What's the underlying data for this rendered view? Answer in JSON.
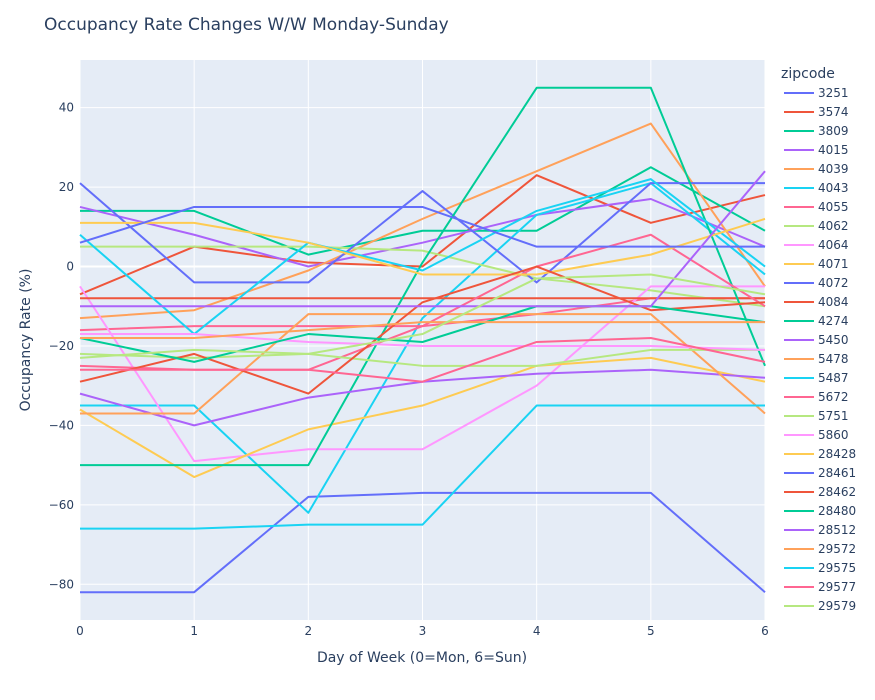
{
  "chart_data": {
    "type": "line",
    "title": "Occupancy Rate Changes W/W Monday-Sunday",
    "xlabel": "Day of Week (0=Mon, 6=Sun)",
    "ylabel": "Occupancy Rate (%)",
    "x": [
      0,
      1,
      2,
      3,
      4,
      5,
      6
    ],
    "x_ticks": [
      "0",
      "1",
      "2",
      "3",
      "4",
      "5",
      "6"
    ],
    "y_ticks": [
      "−80",
      "−60",
      "−40",
      "−20",
      "0",
      "20",
      "40"
    ],
    "y_tick_values": [
      -80,
      -60,
      -40,
      -20,
      0,
      20,
      40
    ],
    "xlim": [
      0,
      6
    ],
    "ylim": [
      -89,
      52
    ],
    "grid": true,
    "plot_bg": "#E5ECF6",
    "legend_title": "zipcode",
    "legend_position": "right",
    "series": [
      {
        "name": "3251",
        "color": "#636EFA",
        "values": [
          -82,
          -82,
          -58,
          -57,
          -57,
          -57,
          -82
        ]
      },
      {
        "name": "3574",
        "color": "#EF553B",
        "values": [
          -7,
          5,
          1,
          0,
          23,
          11,
          18
        ]
      },
      {
        "name": "3809",
        "color": "#00CC96",
        "values": [
          14,
          14,
          3,
          9,
          9,
          25,
          9
        ]
      },
      {
        "name": "4015",
        "color": "#AB63FA",
        "values": [
          15,
          8,
          0,
          6,
          13,
          17,
          5
        ]
      },
      {
        "name": "4039",
        "color": "#FFA15A",
        "values": [
          -13,
          -11,
          -1,
          12,
          24,
          36,
          -5
        ]
      },
      {
        "name": "4043",
        "color": "#19D3F3",
        "values": [
          -35,
          -35,
          -62,
          -13,
          13,
          21,
          -2
        ]
      },
      {
        "name": "4055",
        "color": "#FF6692",
        "values": [
          -16,
          -15,
          -15,
          -15,
          -12,
          -8,
          -8
        ]
      },
      {
        "name": "4062",
        "color": "#B6E880",
        "values": [
          5,
          5,
          5,
          4,
          -3,
          -6,
          -10
        ]
      },
      {
        "name": "4064",
        "color": "#FF97FF",
        "values": [
          -5,
          -49,
          -46,
          -46,
          -30,
          -5,
          -5
        ]
      },
      {
        "name": "4071",
        "color": "#FECB52",
        "values": [
          -36,
          -53,
          -41,
          -35,
          -25,
          -23,
          -29
        ]
      },
      {
        "name": "4072",
        "color": "#636EFA",
        "values": [
          21,
          -4,
          -4,
          19,
          -4,
          21,
          21
        ]
      },
      {
        "name": "4084",
        "color": "#EF553B",
        "values": [
          -8,
          -8,
          -8,
          -8,
          -8,
          -8,
          -8
        ]
      },
      {
        "name": "4274",
        "color": "#00CC96",
        "values": [
          -50,
          -50,
          -50,
          1,
          45,
          45,
          -25
        ]
      },
      {
        "name": "5450",
        "color": "#AB63FA",
        "values": [
          -32,
          -40,
          -33,
          -29,
          -27,
          -26,
          -28
        ]
      },
      {
        "name": "5478",
        "color": "#FFA15A",
        "values": [
          -37,
          -37,
          -12,
          -12,
          -12,
          -12,
          -37
        ]
      },
      {
        "name": "5487",
        "color": "#19D3F3",
        "values": [
          8,
          -17,
          6,
          -1,
          14,
          22,
          0
        ]
      },
      {
        "name": "5672",
        "color": "#FF6692",
        "values": [
          -25,
          -26,
          -26,
          -15,
          0,
          8,
          -10
        ]
      },
      {
        "name": "5751",
        "color": "#B6E880",
        "values": [
          -22,
          -23,
          -22,
          -25,
          -25,
          -21,
          -21
        ]
      },
      {
        "name": "5860",
        "color": "#FF97FF",
        "values": [
          -17,
          -17,
          -19,
          -20,
          -20,
          -20,
          -21
        ]
      },
      {
        "name": "28428",
        "color": "#FECB52",
        "values": [
          11,
          11,
          6,
          -2,
          -2,
          3,
          12
        ]
      },
      {
        "name": "28461",
        "color": "#636EFA",
        "values": [
          6,
          15,
          15,
          15,
          5,
          5,
          5
        ]
      },
      {
        "name": "28462",
        "color": "#EF553B",
        "values": [
          -29,
          -22,
          -32,
          -9,
          0,
          -11,
          -9
        ]
      },
      {
        "name": "28480",
        "color": "#00CC96",
        "values": [
          -18,
          -24,
          -17,
          -19,
          -10,
          -10,
          -14
        ]
      },
      {
        "name": "28512",
        "color": "#AB63FA",
        "values": [
          -10,
          -10,
          -10,
          -10,
          -10,
          -10,
          24
        ]
      },
      {
        "name": "29572",
        "color": "#FFA15A",
        "values": [
          -18,
          -18,
          -16,
          -14,
          -14,
          -14,
          -14
        ]
      },
      {
        "name": "29575",
        "color": "#19D3F3",
        "values": [
          -66,
          -66,
          -65,
          -65,
          -35,
          -35,
          -35
        ]
      },
      {
        "name": "29577",
        "color": "#FF6692",
        "values": [
          -26,
          -26,
          -26,
          -29,
          -19,
          -18,
          -24
        ]
      },
      {
        "name": "29579",
        "color": "#B6E880",
        "values": [
          -23,
          -21,
          -22,
          -17,
          -3,
          -2,
          -7
        ]
      }
    ]
  }
}
